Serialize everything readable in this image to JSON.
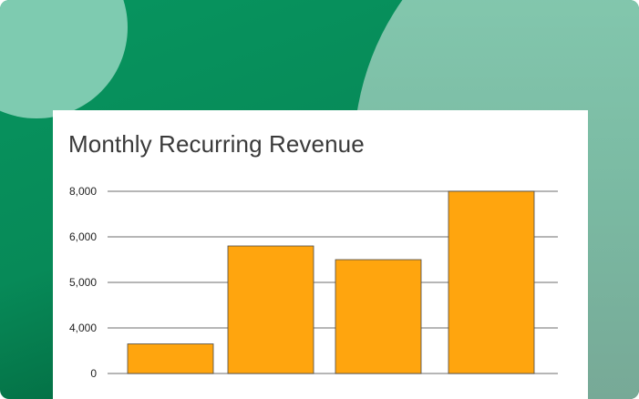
{
  "colors": {
    "background_green": "#07955f",
    "accent_circle": "#7ecbb0",
    "bar_fill": "#ffa50e",
    "bar_stroke": "#4a4a4a",
    "gridline": "#8a8a8a"
  },
  "chart_data": {
    "type": "bar",
    "title": "Monthly Recurring Revenue",
    "xlabel": "",
    "ylabel": "",
    "categories": [
      "",
      "",
      "",
      ""
    ],
    "values": [
      1300,
      5600,
      5000,
      8000
    ],
    "yticks": [
      {
        "value": 0,
        "label": "0"
      },
      {
        "value": 4000,
        "label": "4,000"
      },
      {
        "value": 5000,
        "label": "5,000"
      },
      {
        "value": 6000,
        "label": "6,000"
      },
      {
        "value": 8000,
        "label": "8,000"
      }
    ],
    "ylim": [
      0,
      8000
    ],
    "grid": true,
    "legend": "none"
  }
}
